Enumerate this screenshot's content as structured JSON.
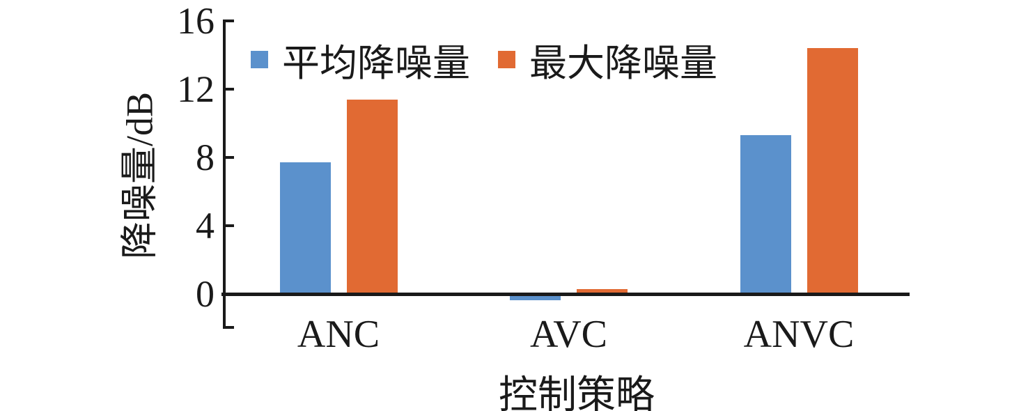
{
  "chart_data": {
    "type": "bar",
    "title": "",
    "xlabel": "控制策略",
    "ylabel": "降噪量/dB",
    "categories": [
      "ANC",
      "AVC",
      "ANVC"
    ],
    "series": [
      {
        "name": "平均降噪量",
        "color": "#5B91CC",
        "values": [
          7.7,
          -0.3,
          9.3
        ]
      },
      {
        "name": "最大降噪量",
        "color": "#E16A33",
        "values": [
          11.4,
          0.3,
          14.4
        ]
      }
    ],
    "yticks": [
      0,
      4,
      8,
      12,
      16
    ],
    "ylim": [
      -2,
      16
    ],
    "grid": false,
    "legend_position": "top-inside",
    "axis_color": "#1a1a1a",
    "background_color": "#ffffff"
  }
}
